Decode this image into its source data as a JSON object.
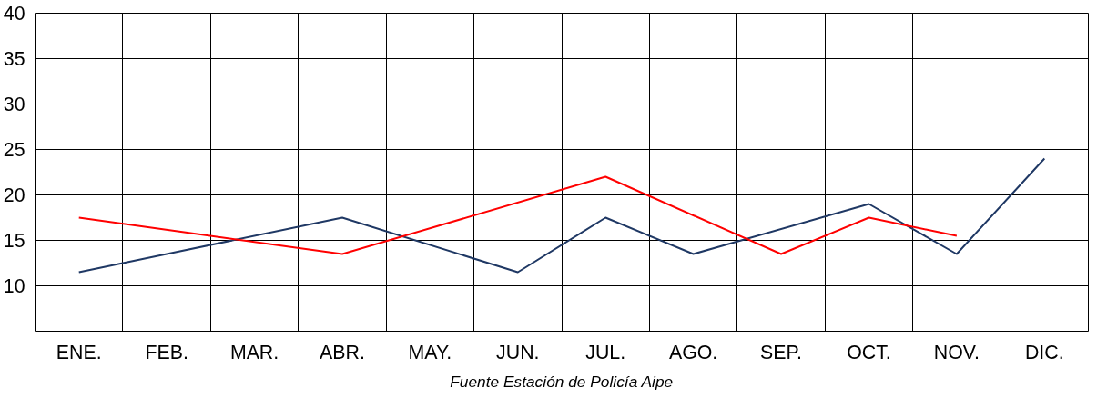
{
  "chart_data": {
    "type": "line",
    "categories": [
      "ENE.",
      "FEB.",
      "MAR.",
      "ABR.",
      "MAY.",
      "JUN.",
      "JUL.",
      "AGO.",
      "SEP.",
      "OCT.",
      "NOV.",
      "DIC."
    ],
    "series": [
      {
        "color": "#1f3864",
        "values": [
          11.5,
          13.5,
          null,
          17.5,
          null,
          11.5,
          17.5,
          13.5,
          null,
          19,
          13.5,
          24
        ]
      },
      {
        "color": "#ff0000",
        "values": [
          17.5,
          null,
          null,
          13.5,
          null,
          null,
          22,
          null,
          13.5,
          17.5,
          15.5,
          null
        ]
      }
    ],
    "ylim": [
      5,
      40
    ],
    "yticks": [
      10,
      15,
      20,
      25,
      30,
      35,
      40
    ],
    "grid": true,
    "marker": "none",
    "line_style": "solid",
    "annotations": [
      "Fuente Estación de Policía Aipe"
    ]
  }
}
